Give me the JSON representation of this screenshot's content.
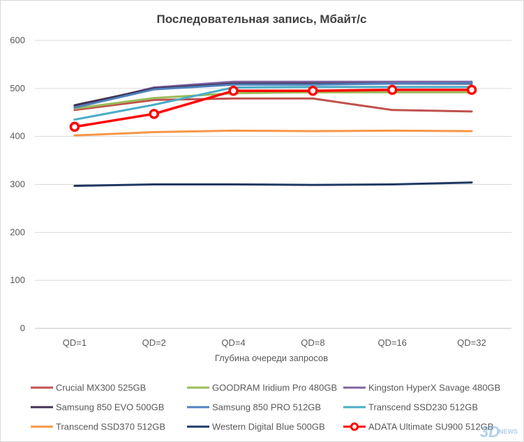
{
  "chart_data": {
    "type": "line",
    "title": "Последовательная запись, Мбайт/с",
    "xlabel": "Глубина очереди запросов",
    "ylabel": "",
    "ylim": [
      0,
      600
    ],
    "yticks": [
      0,
      100,
      200,
      300,
      400,
      500,
      600
    ],
    "grid": true,
    "legend_position": "bottom",
    "categories": [
      "QD=1",
      "QD=2",
      "QD=4",
      "QD=8",
      "QD=16",
      "QD=32"
    ],
    "series": [
      {
        "name": "Crucial MX300 525GB",
        "color": "#c0504d",
        "values": [
          455,
          476,
          479,
          479,
          455,
          452
        ],
        "markers": false
      },
      {
        "name": "GOODRAM Iridium Pro 480GB",
        "color": "#9bbb59",
        "values": [
          458,
          480,
          490,
          492,
          492,
          492
        ],
        "markers": false
      },
      {
        "name": "Kingston HyperX Savage 480GB",
        "color": "#8064a2",
        "values": [
          462,
          502,
          514,
          514,
          514,
          514
        ],
        "markers": false
      },
      {
        "name": "Samsung 850 EVO 500GB",
        "color": "#403152",
        "values": [
          465,
          500,
          510,
          510,
          510,
          510
        ],
        "markers": false
      },
      {
        "name": "Samsung 850 PRO 512GB",
        "color": "#4f81bd",
        "values": [
          460,
          498,
          508,
          508,
          510,
          511
        ],
        "markers": false
      },
      {
        "name": "Transcend SSD230 512GB",
        "color": "#4bacc6",
        "values": [
          435,
          466,
          502,
          503,
          503,
          503
        ],
        "markers": false
      },
      {
        "name": "Transcend SSD370 512GB",
        "color": "#f79646",
        "values": [
          402,
          409,
          412,
          411,
          412,
          411
        ],
        "markers": false
      },
      {
        "name": "Western Digital Blue 500GB",
        "color": "#1f3864",
        "values": [
          297,
          300,
          300,
          299,
          300,
          304
        ],
        "markers": false
      },
      {
        "name": "ADATA Ultimate SU900 512GB",
        "color": "#ff0000",
        "values": [
          420,
          447,
          495,
          495,
          497,
          497
        ],
        "markers": true
      }
    ]
  },
  "colors": {
    "grid": "#d9d9d9",
    "axis": "#bfbfbf",
    "text": "#595959",
    "title": "#404040"
  },
  "watermark": {
    "brand": "3D",
    "suffix": "NEWS"
  }
}
